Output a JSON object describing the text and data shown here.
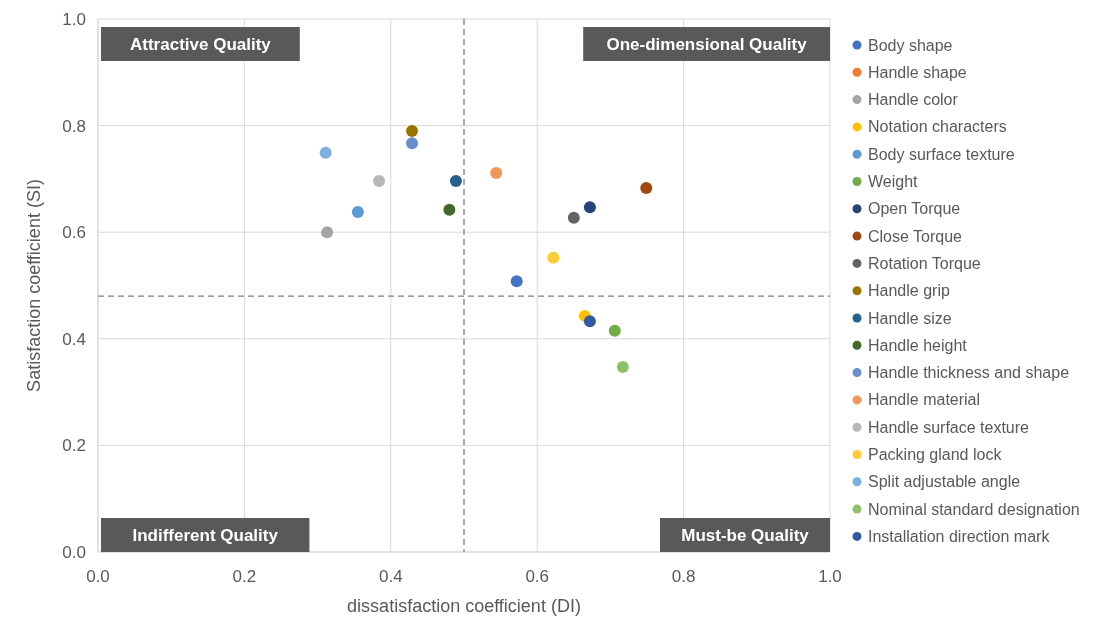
{
  "chart_data": {
    "type": "scatter",
    "xlabel": "dissatisfaction coefficient (DI)",
    "ylabel": "Satisfaction coefficient (SI)",
    "xlim": [
      0,
      1
    ],
    "ylim": [
      0,
      1
    ],
    "xticks": [
      {
        "value": 0,
        "label": "0.0"
      },
      {
        "value": 0.2,
        "label": "0.2"
      },
      {
        "value": 0.4,
        "label": "0.4"
      },
      {
        "value": 0.6,
        "label": "0.6"
      },
      {
        "value": 0.8,
        "label": "0.8"
      },
      {
        "value": 1,
        "label": "1.0"
      }
    ],
    "yticks": [
      {
        "value": 0,
        "label": "0.0"
      },
      {
        "value": 0.2,
        "label": "0.2"
      },
      {
        "value": 0.4,
        "label": "0.4"
      },
      {
        "value": 0.6,
        "label": "0.6"
      },
      {
        "value": 0.8,
        "label": "0.8"
      },
      {
        "value": 1,
        "label": "1.0"
      }
    ],
    "grid": true,
    "legend": "right",
    "marker": "circle",
    "annotations": [
      "Attractive Quality",
      "One-dimensional Quality",
      "Indifferent Quality",
      "Must-be Quality"
    ],
    "ref_lines": [
      {
        "axis": "x",
        "value": 0.5,
        "color": "#7f7f7f",
        "line_style": "dashed"
      },
      {
        "axis": "y",
        "value": 0.48,
        "color": "#7f7f7f",
        "line_style": "dashed"
      }
    ],
    "series": [
      {
        "name": "Body shape",
        "color": "#4472c4",
        "x": [
          0.572
        ],
        "values": [
          0.508
        ]
      },
      {
        "name": "Handle shape",
        "color": "#ed7d31",
        "x": [
          null
        ],
        "values": [
          null
        ]
      },
      {
        "name": "Handle color",
        "color": "#a5a5a5",
        "x": [
          0.313
        ],
        "values": [
          0.6
        ]
      },
      {
        "name": "Notation characters",
        "color": "#ffc000",
        "x": [
          0.665
        ],
        "values": [
          0.443
        ]
      },
      {
        "name": "Body surface texture",
        "color": "#5b9bd5",
        "x": [
          0.355
        ],
        "values": [
          0.638
        ]
      },
      {
        "name": "Weight",
        "color": "#70ad47",
        "x": [
          0.706
        ],
        "values": [
          0.415
        ]
      },
      {
        "name": "Open Torque",
        "color": "#264478",
        "x": [
          0.672
        ],
        "values": [
          0.647
        ]
      },
      {
        "name": "Close Torque",
        "color": "#9e480e",
        "x": [
          0.749
        ],
        "values": [
          0.683
        ]
      },
      {
        "name": "Rotation Torque",
        "color": "#636363",
        "x": [
          0.65
        ],
        "values": [
          0.627
        ]
      },
      {
        "name": "Handle grip",
        "color": "#997300",
        "x": [
          0.429
        ],
        "values": [
          0.79
        ]
      },
      {
        "name": "Handle size",
        "color": "#255e91",
        "x": [
          0.489
        ],
        "values": [
          0.696
        ]
      },
      {
        "name": "Handle height",
        "color": "#43682b",
        "x": [
          0.48
        ],
        "values": [
          0.642
        ]
      },
      {
        "name": "Handle thickness and shape",
        "color": "#698ed0",
        "x": [
          0.429
        ],
        "values": [
          0.767
        ]
      },
      {
        "name": "Handle material",
        "color": "#f1975a",
        "x": [
          0.544
        ],
        "values": [
          0.711
        ]
      },
      {
        "name": "Handle surface texture",
        "color": "#b7b7b7",
        "x": [
          0.384
        ],
        "values": [
          0.696
        ]
      },
      {
        "name": "Packing gland lock",
        "color": "#ffcd33",
        "x": [
          0.622
        ],
        "values": [
          0.552
        ]
      },
      {
        "name": "Split adjustable angle",
        "color": "#7cafdd",
        "x": [
          0.311
        ],
        "values": [
          0.749
        ]
      },
      {
        "name": "Nominal standard designation",
        "color": "#8cc168",
        "x": [
          0.717
        ],
        "values": [
          0.347
        ]
      },
      {
        "name": "Installation direction mark",
        "color": "#335aa1",
        "x": [
          0.672
        ],
        "values": [
          0.433
        ]
      }
    ]
  }
}
